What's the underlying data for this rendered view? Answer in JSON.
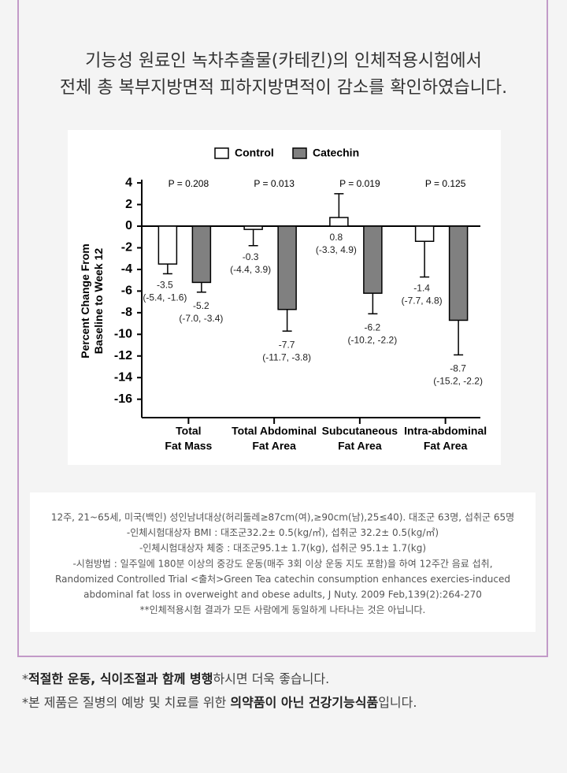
{
  "header": {
    "lines": [
      "기능성 원료인 녹차추출물(카테킨)의 인체적용시험에서",
      "전체 총 복부지방면적 피하지방면적이 감소를 확인하였습니다."
    ]
  },
  "chart_data": {
    "type": "bar",
    "categories": [
      [
        "Total",
        "Fat Mass"
      ],
      [
        "Total Abdominal",
        "Fat Area"
      ],
      [
        "Subcutaneous",
        "Fat Area"
      ],
      [
        "Intra-abdominal",
        "Fat Area"
      ]
    ],
    "annotations": [
      "P = 0.208",
      "P = 0.013",
      "P = 0.019",
      "P = 0.125"
    ],
    "ylabel": [
      "Percent Change From",
      "Baseline to Week 12"
    ],
    "series": [
      {
        "name": "Control",
        "color": "#ffffff",
        "values": [
          -3.5,
          -0.3,
          0.8,
          -1.4
        ],
        "errors": [
          0.9,
          1.5,
          2.2,
          3.3
        ],
        "ci_labels": [
          "(-5.4, -1.6)",
          "(-4.4, 3.9)",
          "(-3.3, 4.9)",
          "(-7.7, 4.8)"
        ]
      },
      {
        "name": "Catechin",
        "color": "#808080",
        "values": [
          -5.2,
          -7.7,
          -6.2,
          -8.7
        ],
        "errors": [
          0.9,
          2.0,
          1.9,
          3.2
        ],
        "ci_labels": [
          "(-7.0, -3.4)",
          "(-11.7, -3.8)",
          "(-10.2, -2.2)",
          "(-15.2, -2.2)"
        ]
      }
    ],
    "ylim": [
      -17.7,
      4.3
    ],
    "yticks": [
      -16,
      -14,
      -12,
      -10,
      -8,
      -6,
      -4,
      -2,
      0,
      2,
      4
    ],
    "grid": false
  },
  "notes": [
    "12주, 21~65세, 미국(백인) 성인남녀대상(허리둘레≥87cm(여),≥90cm(남),25≤40). 대조군 63명, 섭취군 65명",
    "-인체시험대상자 BMI : 대조군32.2± 0.5(kg/㎡), 섭취군 32.2± 0.5(kg/㎡)",
    "-인체시험대상자 체중 : 대조군95.1± 1.7(kg), 섭취군 95.1± 1.7(kg)",
    "-시험방법 : 일주일에 180분 이상의 중강도 운동(매주 3회 이상 운동 지도 포함)을 하여 12주간 음료 섭취,",
    "Randomized Controlled Trial <출처>Green Tea catechin consumption enhances exercies-induced",
    "abdominal fat loss in overweight and obese adults, J Nuty. 2009 Feb,139(2):264-270",
    "**인체적용시험 결과가 모든 사람에게 동일하게 나타나는 것은 아닙니다."
  ],
  "footnotes": [
    [
      "*",
      "적절한 운동, 식이조절과 함께 병행",
      "하시면 더욱 좋습니다."
    ],
    [
      "*본 제품은 질병의 예방 및 치료를 위한 ",
      "의약품이 아닌 건강기능식품",
      "입니다."
    ]
  ]
}
